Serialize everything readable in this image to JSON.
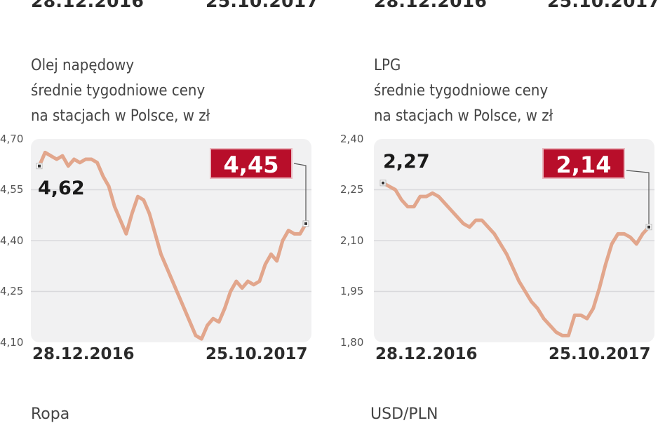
{
  "top_strip": {
    "left": {
      "start_date": "28.12.2016",
      "end_date": "25.10.2017"
    },
    "right": {
      "start_date": "28.12.2016",
      "end_date": "25.10.2017"
    }
  },
  "bottom_strip": {
    "left_title": "Ropa",
    "right_title": "USD/PLN"
  },
  "colors": {
    "line": "#e2a68c",
    "badge": "#b80e2a",
    "panel": "#f1f1f2",
    "grid": "#d9d9dc"
  },
  "charts": [
    {
      "title_line1": "Olej napędowy",
      "title_line2": "średnie tygodniowe ceny",
      "title_line3": "na stacjach w Polsce, w zł",
      "yticks": [
        "4,70",
        "4,55",
        "4,40",
        "4,25",
        "4,10"
      ],
      "start_label": "4,62",
      "end_label": "4,45",
      "start_date": "28.12.2016",
      "end_date": "25.10.2017"
    },
    {
      "title_line1": "LPG",
      "title_line2": "średnie tygodniowe ceny",
      "title_line3": "na stacjach w Polsce, w zł",
      "yticks": [
        "2,40",
        "2,25",
        "2,10",
        "1,95",
        "1,80"
      ],
      "start_label": "2,27",
      "end_label": "2,14",
      "start_date": "28.12.2016",
      "end_date": "25.10.2017"
    }
  ],
  "chart_data": [
    {
      "type": "line",
      "title": "Olej napędowy – średnie tygodniowe ceny na stacjach w Polsce, w zł",
      "xlabel": "",
      "ylabel": "zł",
      "x_range": [
        "28.12.2016",
        "25.10.2017"
      ],
      "ylim": [
        4.1,
        4.7
      ],
      "yticks": [
        4.7,
        4.55,
        4.4,
        4.25,
        4.1
      ],
      "grid": true,
      "annotations": {
        "start": 4.62,
        "end": 4.45
      },
      "series": [
        {
          "name": "Olej napędowy",
          "values": [
            4.62,
            4.66,
            4.65,
            4.64,
            4.65,
            4.62,
            4.64,
            4.63,
            4.64,
            4.64,
            4.63,
            4.59,
            4.56,
            4.5,
            4.46,
            4.42,
            4.48,
            4.53,
            4.52,
            4.48,
            4.42,
            4.36,
            4.32,
            4.28,
            4.24,
            4.2,
            4.16,
            4.12,
            4.11,
            4.15,
            4.17,
            4.16,
            4.2,
            4.25,
            4.28,
            4.26,
            4.28,
            4.27,
            4.28,
            4.33,
            4.36,
            4.34,
            4.4,
            4.43,
            4.42,
            4.42,
            4.45
          ]
        }
      ]
    },
    {
      "type": "line",
      "title": "LPG – średnie tygodniowe ceny na stacjach w Polsce, w zł",
      "xlabel": "",
      "ylabel": "zł",
      "x_range": [
        "28.12.2016",
        "25.10.2017"
      ],
      "ylim": [
        1.8,
        2.4
      ],
      "yticks": [
        2.4,
        2.25,
        2.1,
        1.95,
        1.8
      ],
      "grid": true,
      "annotations": {
        "start": 2.27,
        "end": 2.14
      },
      "series": [
        {
          "name": "LPG",
          "values": [
            2.27,
            2.26,
            2.25,
            2.22,
            2.2,
            2.2,
            2.23,
            2.23,
            2.24,
            2.23,
            2.21,
            2.19,
            2.17,
            2.15,
            2.14,
            2.16,
            2.16,
            2.14,
            2.12,
            2.09,
            2.06,
            2.02,
            1.98,
            1.95,
            1.92,
            1.9,
            1.87,
            1.85,
            1.83,
            1.82,
            1.82,
            1.88,
            1.88,
            1.87,
            1.9,
            1.96,
            2.03,
            2.09,
            2.12,
            2.12,
            2.11,
            2.09,
            2.12,
            2.14
          ]
        }
      ]
    }
  ]
}
